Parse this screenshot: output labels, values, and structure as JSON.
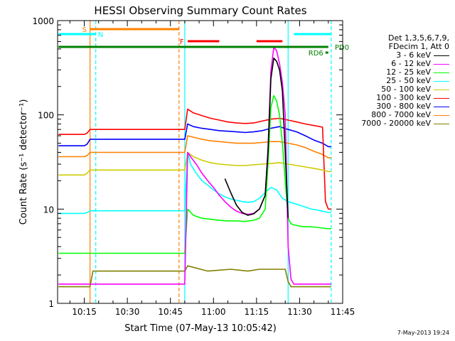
{
  "chart_data": {
    "type": "line",
    "title": "HESSI Observing Summary Count Rates",
    "xlabel": "Start Time (07-May-13 10:05:42)",
    "ylabel": "Count Rate (s⁻¹ detector⁻¹)",
    "xlim": [
      "10:05:42",
      "11:45"
    ],
    "ylim": [
      1,
      1000
    ],
    "y_scale": "log",
    "x_ticks": [
      "10:15",
      "10:30",
      "10:45",
      "11:00",
      "11:15",
      "11:30",
      "11:45"
    ],
    "y_ticks": [
      "1",
      "10",
      "100",
      "1000"
    ],
    "legend_header": [
      "Det 1,3,5,6,7,9,",
      "FDecim 1, Att 0"
    ],
    "legend_placement": "right",
    "series": [
      {
        "name": "3 - 6 keV",
        "color": "#000000",
        "x": [
          "11:04",
          "11:06",
          "11:08",
          "11:10",
          "11:12",
          "11:14",
          "11:16",
          "11:18",
          "11:19",
          "11:20",
          "11:21",
          "11:22",
          "11:23",
          "11:24",
          "11:25",
          "11:26"
        ],
        "y": [
          21,
          15,
          11,
          9.2,
          8.6,
          8.9,
          10,
          14,
          40,
          240,
          400,
          370,
          300,
          180,
          40,
          8
        ]
      },
      {
        "name": "6 - 12 keV",
        "color": "#ff00ff",
        "x": [
          "10:06",
          "10:17",
          "10:18",
          "10:50",
          "10:51",
          "10:52",
          "10:54",
          "10:56",
          "10:58",
          "11:00",
          "11:02",
          "11:04",
          "11:06",
          "11:08",
          "11:10",
          "11:12",
          "11:14",
          "11:16",
          "11:18",
          "11:19",
          "11:20",
          "11:21",
          "11:22",
          "11:23",
          "11:24",
          "11:25",
          "11:26",
          "11:27",
          "11:28",
          "11:29",
          "11:30",
          "11:32",
          "11:35",
          "11:37",
          "11:38",
          "11:40",
          "11:41"
        ],
        "y": [
          1.6,
          1.6,
          1.6,
          1.6,
          40,
          36,
          30,
          24,
          20,
          17,
          14,
          12,
          10.5,
          9.5,
          9,
          8.8,
          9,
          10,
          14,
          45,
          290,
          520,
          480,
          350,
          220,
          100,
          4,
          1.8,
          1.6,
          1.6,
          1.6,
          1.6,
          1.6,
          1.6,
          1.6,
          1.6,
          1.6
        ]
      },
      {
        "name": "12 - 25 keV",
        "color": "#00ff00",
        "x": [
          "10:06",
          "10:17",
          "10:18",
          "10:50",
          "10:51",
          "10:53",
          "10:56",
          "10:59",
          "11:02",
          "11:05",
          "11:08",
          "11:11",
          "11:14",
          "11:16",
          "11:18",
          "11:19",
          "11:20",
          "11:21",
          "11:22",
          "11:23",
          "11:24",
          "11:25",
          "11:26",
          "11:27",
          "11:28",
          "11:29",
          "11:30",
          "11:32",
          "11:34",
          "11:36",
          "11:38",
          "11:40",
          "11:41"
        ],
        "y": [
          3.4,
          3.4,
          3.4,
          3.4,
          10,
          8.6,
          8,
          7.8,
          7.6,
          7.5,
          7.5,
          7.4,
          7.6,
          8,
          10,
          30,
          120,
          160,
          140,
          100,
          50,
          20,
          8,
          7,
          6.8,
          6.7,
          6.6,
          6.5,
          6.5,
          6.4,
          6.3,
          6.2,
          6.2
        ]
      },
      {
        "name": "25 - 50 keV",
        "color": "#00ffff",
        "x": [
          "10:06",
          "10:15",
          "10:16",
          "10:17",
          "10:18",
          "10:50",
          "10:51",
          "10:52",
          "10:54",
          "10:56",
          "10:58",
          "11:00",
          "11:02",
          "11:04",
          "11:06",
          "11:08",
          "11:10",
          "11:12",
          "11:14",
          "11:16",
          "11:18",
          "11:20",
          "11:22",
          "11:24",
          "11:26",
          "11:28",
          "11:30",
          "11:32",
          "11:34",
          "11:36",
          "11:38",
          "11:40",
          "11:41"
        ],
        "y": [
          9,
          9,
          9.2,
          9.6,
          9.6,
          9.6,
          40,
          30,
          24,
          20,
          18,
          16,
          14.5,
          13.5,
          12.8,
          12.4,
          12,
          11.8,
          12,
          13,
          15,
          17,
          16,
          13,
          12,
          11.5,
          11,
          10.5,
          10,
          9.8,
          9.5,
          9.2,
          9.2
        ]
      },
      {
        "name": "50 - 100 keV",
        "color": "#cccc00",
        "x": [
          "10:06",
          "10:15",
          "10:16",
          "10:17",
          "10:18",
          "10:50",
          "10:51",
          "10:53",
          "10:56",
          "10:59",
          "11:02",
          "11:05",
          "11:08",
          "11:11",
          "11:14",
          "11:17",
          "11:20",
          "11:23",
          "11:26",
          "11:29",
          "11:32",
          "11:35",
          "11:38",
          "11:40",
          "11:41"
        ],
        "y": [
          23,
          23,
          24,
          26,
          26,
          26,
          40,
          36,
          33,
          31,
          30,
          29.5,
          29,
          29,
          29.5,
          30,
          30.5,
          31,
          30,
          29,
          28,
          27,
          26,
          25,
          25
        ]
      },
      {
        "name": "100 - 300 keV",
        "color": "#ff0000",
        "x": [
          "10:06",
          "10:15",
          "10:16",
          "10:17",
          "10:18",
          "10:50",
          "10:51",
          "10:53",
          "10:56",
          "10:59",
          "11:02",
          "11:05",
          "11:08",
          "11:11",
          "11:14",
          "11:17",
          "11:20",
          "11:23",
          "11:26",
          "11:29",
          "11:32",
          "11:35",
          "11:38",
          "11:39",
          "11:40",
          "11:41"
        ],
        "y": [
          62,
          62,
          64,
          70,
          70,
          70,
          115,
          105,
          98,
          92,
          88,
          84,
          82,
          81,
          82,
          86,
          90,
          92,
          88,
          84,
          80,
          77,
          74,
          12,
          10,
          10
        ]
      },
      {
        "name": "300 - 800 keV",
        "color": "#0000ff",
        "x": [
          "10:06",
          "10:15",
          "10:16",
          "10:17",
          "10:18",
          "10:50",
          "10:51",
          "10:53",
          "10:56",
          "10:59",
          "11:02",
          "11:05",
          "11:08",
          "11:11",
          "11:14",
          "11:17",
          "11:20",
          "11:23",
          "11:26",
          "11:29",
          "11:32",
          "11:35",
          "11:38",
          "11:40",
          "11:41"
        ],
        "y": [
          47,
          47,
          49,
          55,
          55,
          55,
          80,
          75,
          72,
          70,
          68,
          67,
          66,
          65,
          66,
          68,
          72,
          75,
          70,
          66,
          60,
          54,
          50,
          46,
          46
        ]
      },
      {
        "name": "800 - 7000 keV",
        "color": "#ff8000",
        "x": [
          "10:06",
          "10:15",
          "10:16",
          "10:17",
          "10:18",
          "10:50",
          "10:51",
          "10:53",
          "10:56",
          "10:59",
          "11:02",
          "11:05",
          "11:08",
          "11:11",
          "11:14",
          "11:17",
          "11:20",
          "11:23",
          "11:26",
          "11:29",
          "11:32",
          "11:35",
          "11:38",
          "11:40",
          "11:41"
        ],
        "y": [
          36,
          36,
          37,
          40,
          40,
          40,
          60,
          58,
          55,
          53,
          52,
          51,
          50,
          50,
          50,
          51,
          52,
          52,
          50,
          48,
          45,
          41,
          38,
          35,
          35
        ]
      },
      {
        "name": "7000 - 20000 keV",
        "color": "#808000",
        "x": [
          "10:06",
          "10:17",
          "10:18",
          "10:50",
          "10:51",
          "10:58",
          "11:06",
          "11:12",
          "11:16",
          "11:17",
          "11:18",
          "11:19",
          "11:20",
          "11:21",
          "11:22",
          "11:23",
          "11:24",
          "11:25",
          "11:26",
          "11:27",
          "11:28",
          "11:29",
          "11:30",
          "11:32",
          "11:35",
          "11:38",
          "11:41"
        ],
        "y": [
          1.5,
          1.5,
          2.2,
          2.2,
          2.5,
          2.2,
          2.3,
          2.2,
          2.3,
          2.3,
          2.3,
          2.3,
          2.3,
          2.3,
          2.3,
          2.3,
          2.3,
          2.3,
          1.7,
          1.5,
          1.5,
          1.5,
          1.5,
          1.5,
          1.5,
          1.5,
          1.5
        ]
      }
    ],
    "segments": [
      {
        "label": "S",
        "color": "#ff8000",
        "start": "10:17",
        "end": "10:48"
      },
      {
        "label": "N",
        "color": "#00ffff",
        "start": "10:06",
        "end": "10:19"
      },
      {
        "label": "",
        "color": "#00ffff",
        "start": "11:28",
        "end": "11:41"
      },
      {
        "label": "F",
        "color": "#ff0000",
        "start": "10:51",
        "end": "11:02"
      },
      {
        "label": "",
        "color": "#ff0000",
        "start": "11:15",
        "end": "11:24"
      },
      {
        "label": "PD0",
        "color": "#008000",
        "start": "10:06",
        "end": "11:40"
      },
      {
        "label": "RD6",
        "color": "#008000",
        "start": "11:39",
        "end": "11:40"
      }
    ],
    "vertical_lines": [
      {
        "time": "10:17",
        "color": "#ff8000",
        "style": "solid"
      },
      {
        "time": "10:19",
        "color": "#00ffff",
        "style": "dashed"
      },
      {
        "time": "10:48",
        "color": "#ff8000",
        "style": "dashed"
      },
      {
        "time": "10:50",
        "color": "#00ffff",
        "style": "solid"
      },
      {
        "time": "11:26",
        "color": "#00ffff",
        "style": "solid"
      },
      {
        "time": "11:41",
        "color": "#00ffff",
        "style": "dashed"
      }
    ],
    "footer": "7-May-2013 19:24"
  }
}
